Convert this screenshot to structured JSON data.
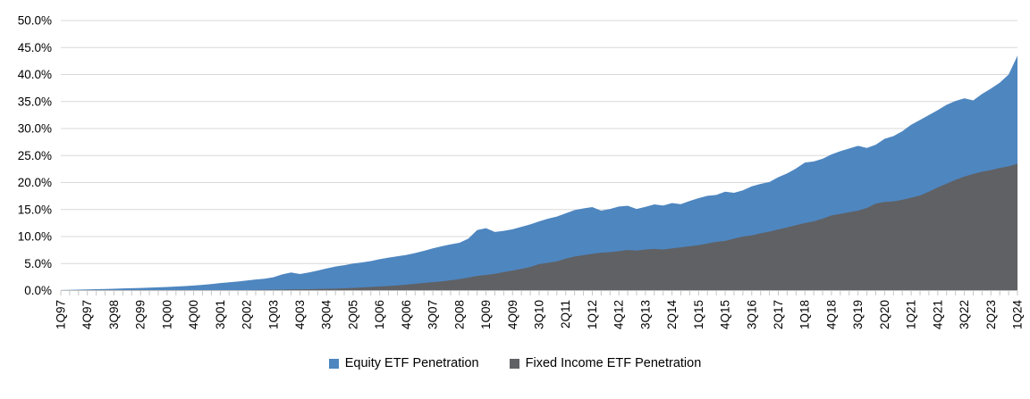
{
  "chart_data": {
    "type": "area",
    "title": "",
    "frequency": "quarterly",
    "x_start": "1Q97",
    "x_end": "1Q24",
    "x_label_every": 3,
    "x_tick_labels": [
      "1Q97",
      "4Q97",
      "3Q98",
      "2Q99",
      "1Q00",
      "4Q00",
      "3Q01",
      "2Q02",
      "1Q03",
      "4Q03",
      "3Q04",
      "2Q05",
      "1Q06",
      "4Q06",
      "3Q07",
      "2Q08",
      "1Q09",
      "4Q09",
      "3Q10",
      "2Q11",
      "1Q12",
      "4Q12",
      "3Q13",
      "2Q14",
      "1Q15",
      "4Q15",
      "3Q16",
      "2Q17",
      "1Q18",
      "4Q18",
      "3Q19",
      "2Q20",
      "1Q21",
      "4Q21",
      "3Q22",
      "2Q23",
      "1Q24"
    ],
    "y_tick_labels": [
      "0.0%",
      "5.0%",
      "10.0%",
      "15.0%",
      "20.0%",
      "25.0%",
      "30.0%",
      "35.0%",
      "40.0%",
      "45.0%",
      "50.0%"
    ],
    "ylim": [
      0,
      50
    ],
    "grid": true,
    "legend_position": "bottom",
    "series": [
      {
        "name": "Equity ETF Penetration",
        "color": "#4E86C0",
        "values": [
          0.1,
          0.13,
          0.16,
          0.2,
          0.24,
          0.28,
          0.33,
          0.4,
          0.44,
          0.48,
          0.54,
          0.6,
          0.66,
          0.74,
          0.82,
          0.92,
          1.05,
          1.2,
          1.38,
          1.52,
          1.68,
          1.85,
          2.05,
          2.2,
          2.45,
          3.0,
          3.35,
          3.05,
          3.35,
          3.7,
          4.1,
          4.45,
          4.7,
          5.0,
          5.2,
          5.45,
          5.8,
          6.1,
          6.35,
          6.6,
          6.95,
          7.35,
          7.8,
          8.2,
          8.55,
          8.85,
          9.6,
          11.2,
          11.55,
          10.85,
          11.05,
          11.35,
          11.8,
          12.25,
          12.8,
          13.3,
          13.7,
          14.3,
          14.9,
          15.2,
          15.45,
          14.8,
          15.1,
          15.55,
          15.7,
          15.1,
          15.5,
          15.95,
          15.75,
          16.2,
          16.0,
          16.6,
          17.1,
          17.55,
          17.7,
          18.3,
          18.1,
          18.55,
          19.3,
          19.75,
          20.1,
          21.0,
          21.7,
          22.6,
          23.7,
          23.9,
          24.4,
          25.2,
          25.8,
          26.3,
          26.8,
          26.4,
          27.0,
          28.1,
          28.6,
          29.5,
          30.7,
          31.6,
          32.5,
          33.4,
          34.4,
          35.1,
          35.6,
          35.2,
          36.4,
          37.4,
          38.5,
          40.0,
          43.5
        ]
      },
      {
        "name": "Fixed Income ETF Penetration",
        "color": "#606164",
        "values": [
          0,
          0,
          0,
          0,
          0,
          0,
          0,
          0,
          0,
          0,
          0,
          0,
          0,
          0,
          0,
          0,
          0,
          0,
          0.02,
          0.03,
          0.05,
          0.08,
          0.1,
          0.12,
          0.15,
          0.17,
          0.2,
          0.22,
          0.25,
          0.28,
          0.32,
          0.36,
          0.42,
          0.5,
          0.58,
          0.66,
          0.75,
          0.85,
          0.95,
          1.1,
          1.25,
          1.4,
          1.55,
          1.7,
          1.9,
          2.1,
          2.4,
          2.7,
          2.9,
          3.1,
          3.4,
          3.7,
          4.0,
          4.35,
          4.9,
          5.15,
          5.4,
          5.9,
          6.3,
          6.55,
          6.8,
          7.0,
          7.1,
          7.3,
          7.5,
          7.4,
          7.6,
          7.7,
          7.6,
          7.8,
          8.0,
          8.2,
          8.4,
          8.7,
          9.0,
          9.2,
          9.6,
          10.0,
          10.2,
          10.6,
          10.9,
          11.3,
          11.7,
          12.1,
          12.5,
          12.8,
          13.3,
          13.9,
          14.2,
          14.5,
          14.8,
          15.3,
          16.1,
          16.4,
          16.5,
          16.8,
          17.2,
          17.6,
          18.3,
          19.1,
          19.8,
          20.5,
          21.1,
          21.6,
          22.0,
          22.3,
          22.7,
          23.0,
          23.5
        ]
      }
    ]
  },
  "colors": {
    "background": "#FFFFFF",
    "gridline": "#D9D9D9",
    "axis": "#BFBFBF",
    "tick": "#C6C6C6",
    "text": "#000000"
  }
}
